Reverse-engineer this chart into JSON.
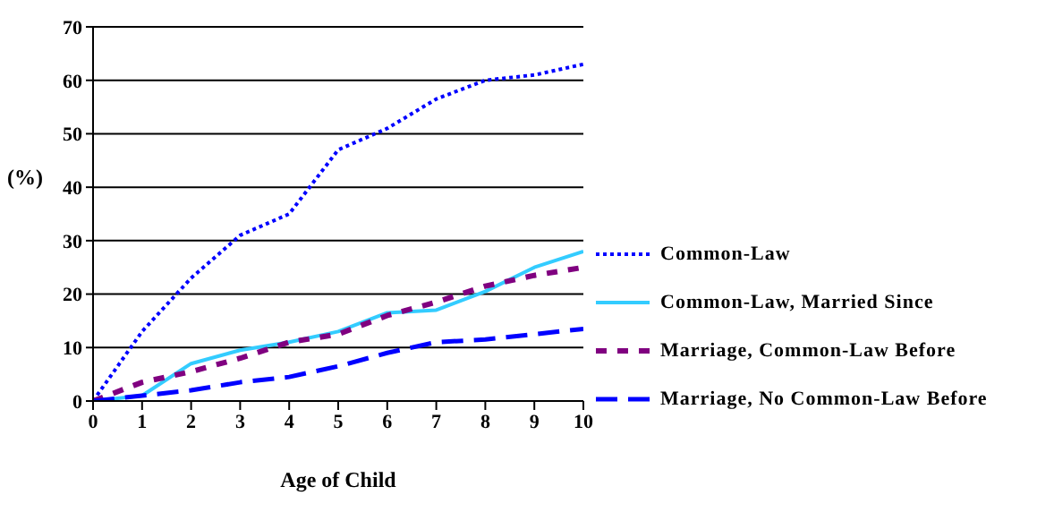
{
  "chart_data": {
    "type": "line",
    "xlabel": "Age of Child",
    "ylabel": "(%)",
    "x": [
      0,
      1,
      2,
      3,
      4,
      5,
      6,
      7,
      8,
      9,
      10
    ],
    "xlim": [
      0,
      10
    ],
    "xticks": [
      0,
      1,
      2,
      3,
      4,
      5,
      6,
      7,
      8,
      9,
      10
    ],
    "ylim": [
      0,
      70
    ],
    "yticks": [
      0,
      10,
      20,
      30,
      40,
      50,
      60,
      70
    ],
    "grid": "y",
    "legend": "right",
    "marker": "none",
    "series": [
      {
        "name": "Common-Law",
        "color": "#0000ff",
        "line_style": "dotted",
        "values": [
          0,
          13,
          23,
          31,
          35,
          47,
          51,
          56.5,
          60,
          61,
          63
        ]
      },
      {
        "name": "Common-Law, Married Since",
        "color": "#33ccff",
        "line_style": "solid",
        "values": [
          0,
          1,
          7,
          9.5,
          11,
          13,
          16.5,
          17,
          20.5,
          25,
          28
        ]
      },
      {
        "name": "Marriage, Common-Law Before",
        "color": "#800080",
        "line_style": "dashed",
        "values": [
          0,
          3.5,
          5.5,
          8,
          11,
          12.5,
          16,
          18.5,
          21.5,
          23.5,
          25
        ]
      },
      {
        "name": "Marriage, No Common-Law Before",
        "color": "#0000ff",
        "line_style": "long-dashed",
        "values": [
          0,
          1,
          2,
          3.5,
          4.5,
          6.5,
          9,
          11,
          11.5,
          12.5,
          13.5
        ]
      }
    ]
  }
}
